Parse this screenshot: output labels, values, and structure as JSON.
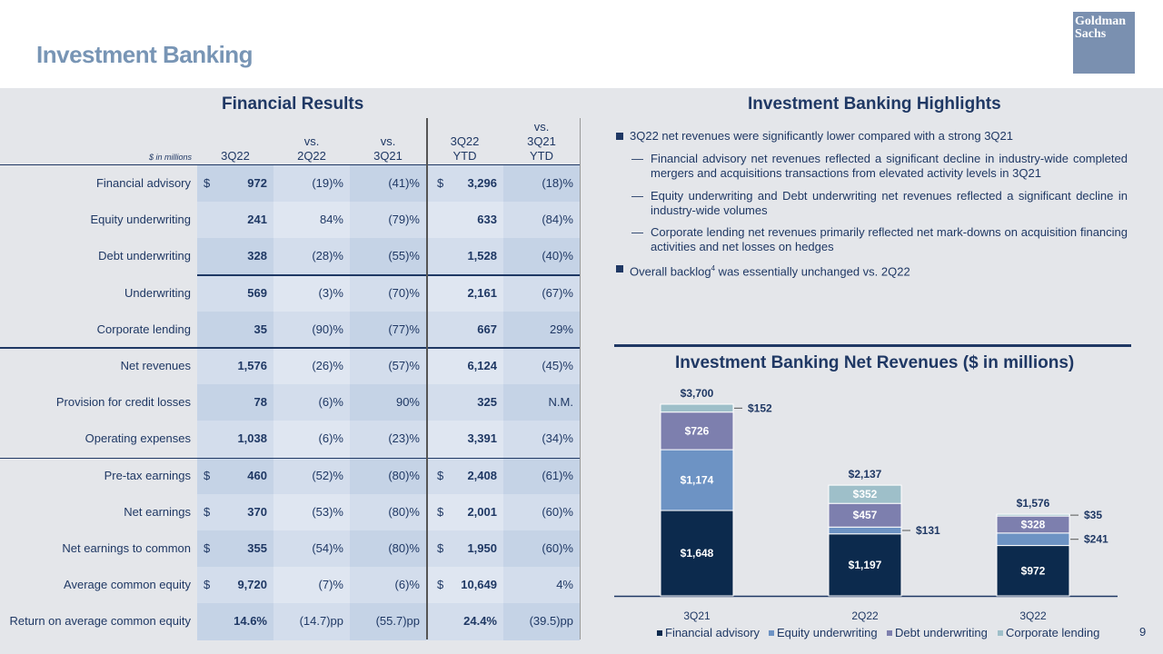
{
  "page": {
    "title": "Investment Banking",
    "logo_text": "Goldman Sachs",
    "page_number": "9"
  },
  "financial_results": {
    "title": "Financial Results",
    "unit_note": "$ in millions",
    "headers": [
      "3Q22",
      "vs.\n2Q22",
      "vs.\n3Q21",
      "3Q22\nYTD",
      "vs.\n3Q21\nYTD"
    ],
    "rows": [
      {
        "label": "Financial advisory",
        "d1": "$",
        "v1": "972",
        "v2": "(19)%",
        "v3": "(41)%",
        "d4": "$",
        "v4": "3,296",
        "v5": "(18)%"
      },
      {
        "label": "Equity underwriting",
        "d1": "",
        "v1": "241",
        "v2": "84%",
        "v3": "(79)%",
        "d4": "",
        "v4": "633",
        "v5": "(84)%"
      },
      {
        "label": "Debt underwriting",
        "d1": "",
        "v1": "328",
        "v2": "(28)%",
        "v3": "(55)%",
        "d4": "",
        "v4": "1,528",
        "v5": "(40)%"
      },
      {
        "label": "Underwriting",
        "d1": "",
        "v1": "569",
        "v2": "(3)%",
        "v3": "(70)%",
        "d4": "",
        "v4": "2,161",
        "v5": "(67)%"
      },
      {
        "label": "Corporate lending",
        "d1": "",
        "v1": "35",
        "v2": "(90)%",
        "v3": "(77)%",
        "d4": "",
        "v4": "667",
        "v5": "29%"
      },
      {
        "label": "Net revenues",
        "d1": "",
        "v1": "1,576",
        "v2": "(26)%",
        "v3": "(57)%",
        "d4": "",
        "v4": "6,124",
        "v5": "(45)%"
      },
      {
        "label": "Provision for credit losses",
        "d1": "",
        "v1": "78",
        "v2": "(6)%",
        "v3": "90%",
        "d4": "",
        "v4": "325",
        "v5": "N.M."
      },
      {
        "label": "Operating expenses",
        "d1": "",
        "v1": "1,038",
        "v2": "(6)%",
        "v3": "(23)%",
        "d4": "",
        "v4": "3,391",
        "v5": "(34)%"
      },
      {
        "label": "Pre-tax earnings",
        "d1": "$",
        "v1": "460",
        "v2": "(52)%",
        "v3": "(80)%",
        "d4": "$",
        "v4": "2,408",
        "v5": "(61)%"
      },
      {
        "label": "Net earnings",
        "d1": "$",
        "v1": "370",
        "v2": "(53)%",
        "v3": "(80)%",
        "d4": "$",
        "v4": "2,001",
        "v5": "(60)%"
      },
      {
        "label": "Net earnings to common",
        "d1": "$",
        "v1": "355",
        "v2": "(54)%",
        "v3": "(80)%",
        "d4": "$",
        "v4": "1,950",
        "v5": "(60)%"
      },
      {
        "label": "Average common equity",
        "d1": "$",
        "v1": "9,720",
        "v2": "(7)%",
        "v3": "(6)%",
        "d4": "$",
        "v4": "10,649",
        "v5": "4%"
      },
      {
        "label": "Return on average common equity",
        "d1": "",
        "v1": "14.6%",
        "v2": "(14.7)pp",
        "v3": "(55.7)pp",
        "d4": "",
        "v4": "24.4%",
        "v5": "(39.5)pp"
      }
    ]
  },
  "highlights": {
    "title": "Investment Banking Highlights",
    "bullet1": "3Q22 net revenues were significantly lower compared with a strong 3Q21",
    "sub1": "Financial advisory net revenues reflected a significant decline in industry-wide completed mergers and acquisitions transactions from elevated activity levels in 3Q21",
    "sub2": "Equity underwriting and Debt underwriting net revenues reflected a significant decline in industry-wide volumes",
    "sub3": "Corporate lending net revenues primarily reflected net mark-downs on acquisition financing activities and net losses on hedges",
    "bullet2_pre": "Overall backlog",
    "bullet2_sup": "4",
    "bullet2_post": " was essentially unchanged vs. 2Q22",
    "dash": "—"
  },
  "chart_data": {
    "type": "bar",
    "stacked": true,
    "title": "Investment Banking Net Revenues ($ in millions)",
    "categories": [
      "3Q21",
      "2Q22",
      "3Q22"
    ],
    "totals": [
      3700,
      2137,
      1576
    ],
    "total_labels": [
      "$3,700",
      "$2,137",
      "$1,576"
    ],
    "series": [
      {
        "name": "Financial advisory",
        "values": [
          1648,
          1197,
          972
        ],
        "labels": [
          "$1,648",
          "$1,197",
          "$972"
        ],
        "color": "#0c2a4d"
      },
      {
        "name": "Equity underwriting",
        "values": [
          1174,
          131,
          241
        ],
        "labels": [
          "$1,174",
          "$131",
          "$241"
        ],
        "color": "#6d93c4"
      },
      {
        "name": "Debt underwriting",
        "values": [
          726,
          457,
          328
        ],
        "labels": [
          "$726",
          "$457",
          "$328"
        ],
        "color": "#7d7fae"
      },
      {
        "name": "Corporate lending",
        "values": [
          152,
          352,
          35
        ],
        "labels": [
          "$152",
          "$352",
          "$35"
        ],
        "color": "#9ebfc9"
      }
    ],
    "legend_position": "bottom",
    "grid": false
  }
}
